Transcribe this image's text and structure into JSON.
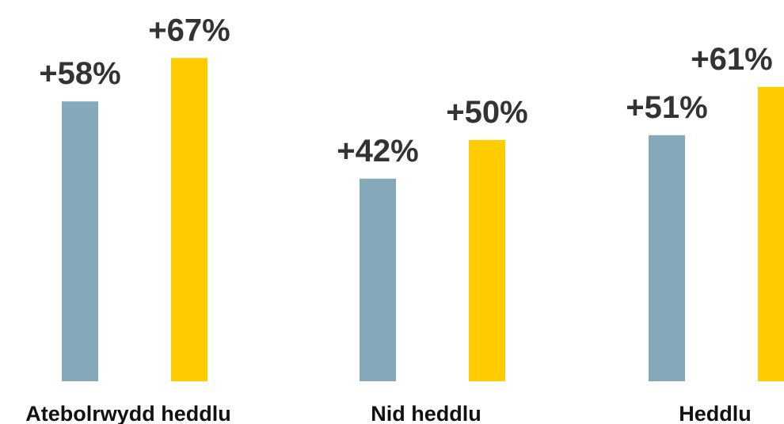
{
  "chart_data": {
    "type": "bar",
    "categories": [
      "Atebolrwydd heddlu",
      "Nid heddlu",
      "Heddlu"
    ],
    "series": [
      {
        "color": "#85a9b8",
        "values": [
          58,
          42,
          51
        ],
        "value_labels": [
          "+58%",
          "+42%",
          "+51%"
        ]
      },
      {
        "color": "#ffcc00",
        "values": [
          67,
          50,
          61
        ],
        "value_labels": [
          "+67%",
          "+50%",
          "+61%"
        ]
      }
    ]
  }
}
